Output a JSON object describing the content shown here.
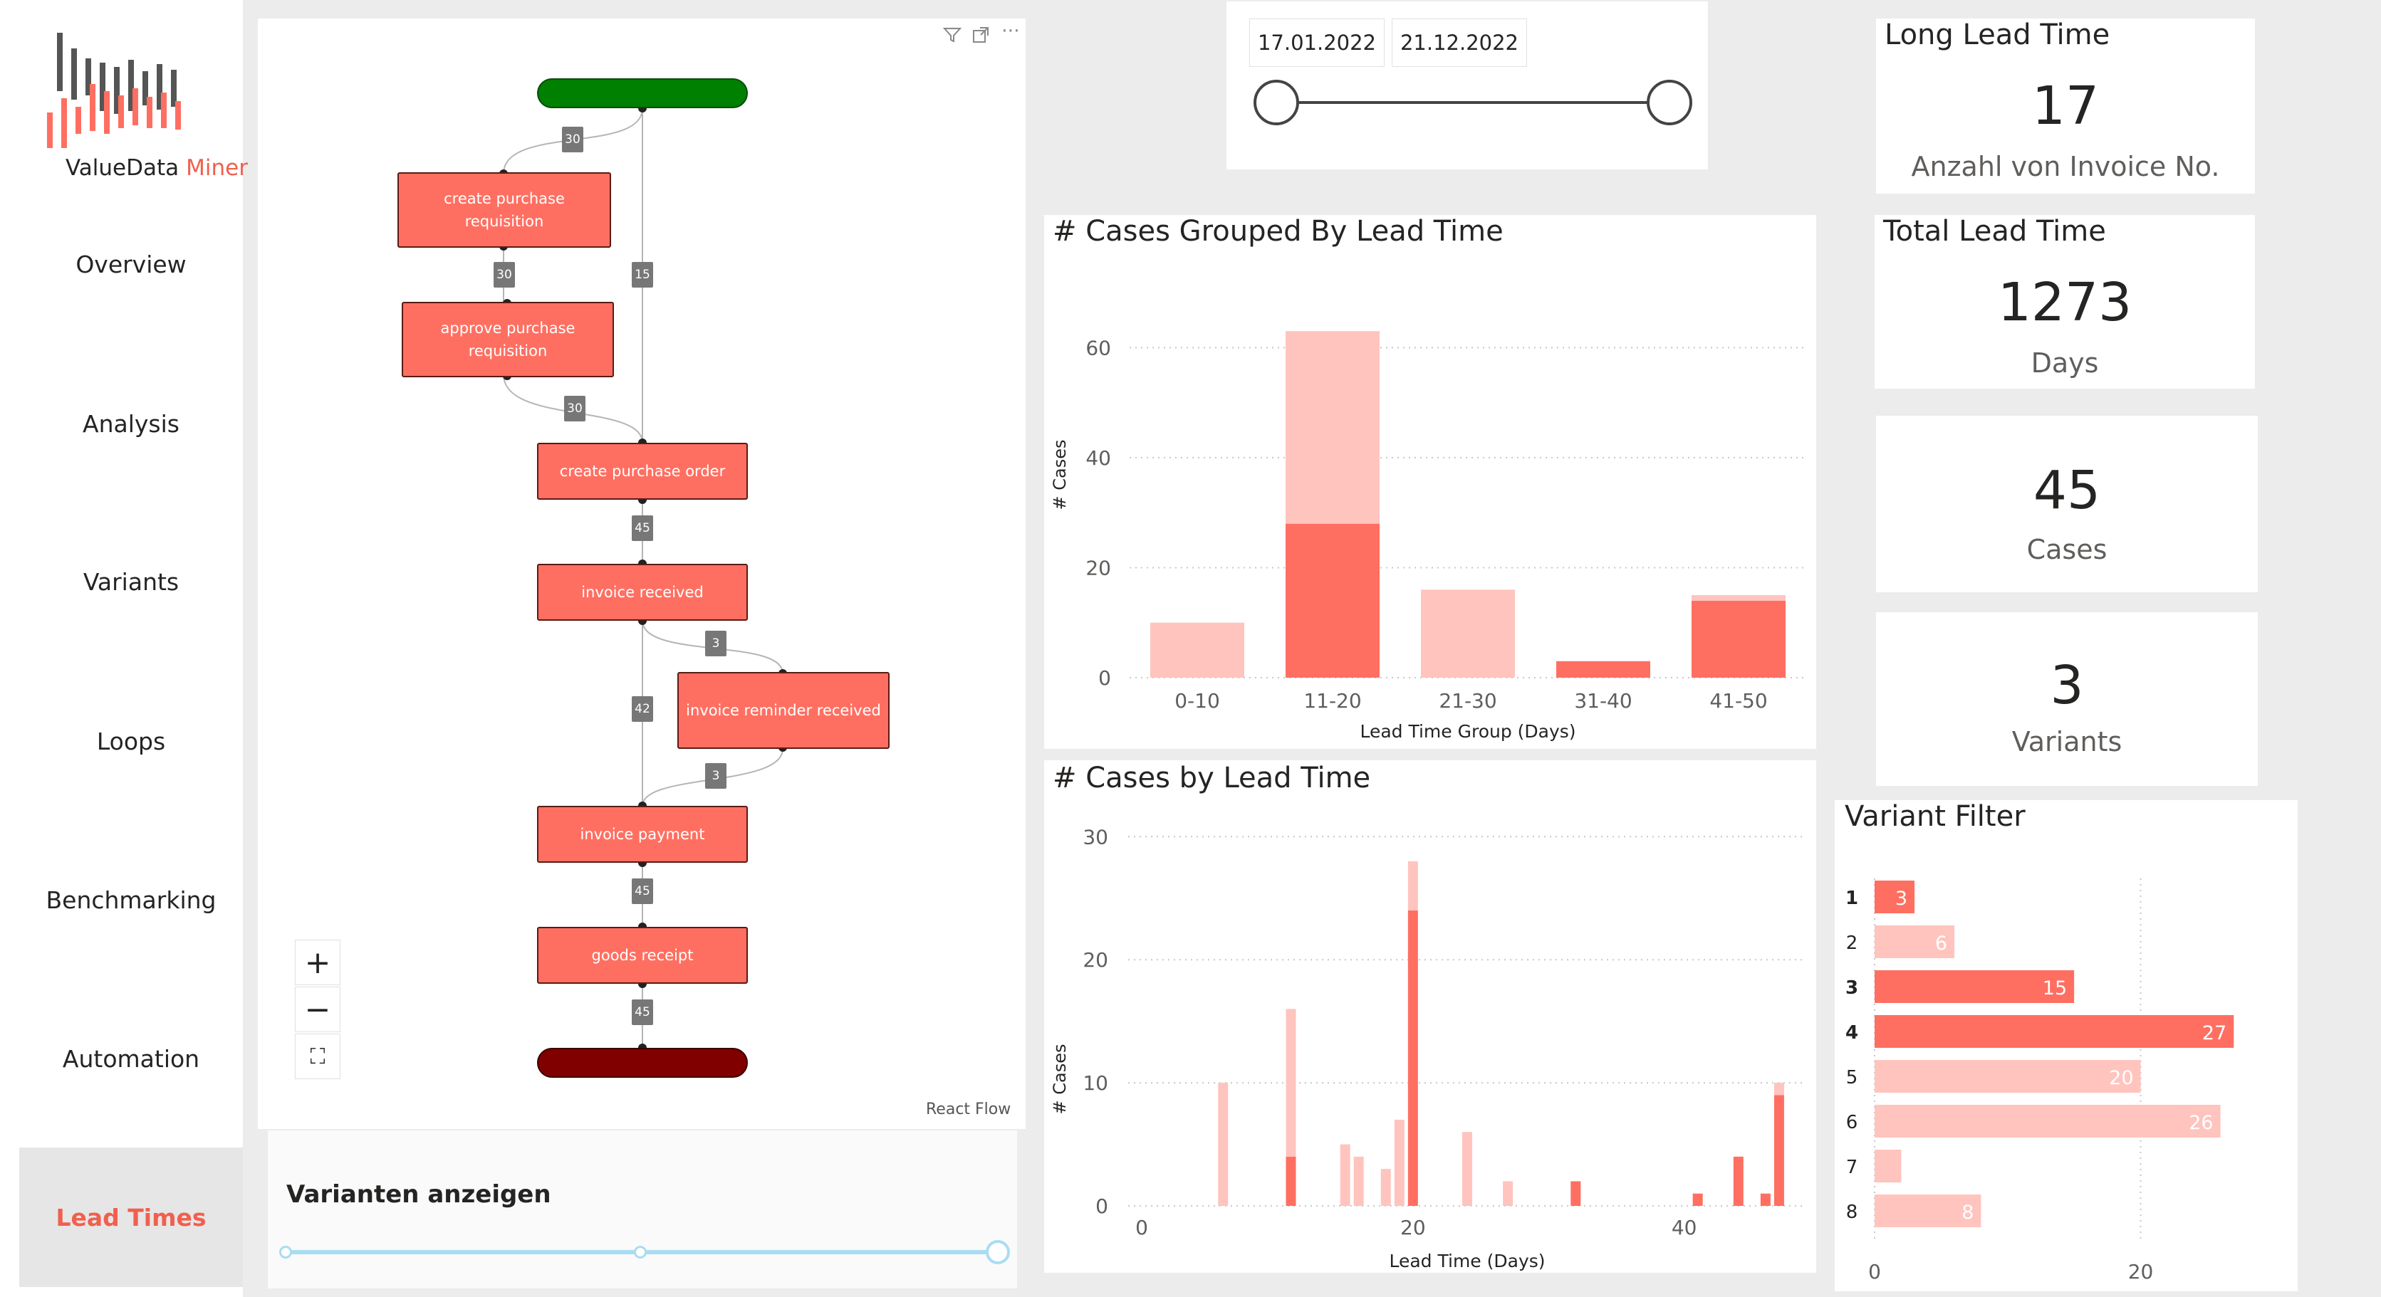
{
  "brand": {
    "name_part1": "ValueData",
    "name_part2": "Miner"
  },
  "nav": {
    "items": [
      {
        "label": "Overview"
      },
      {
        "label": "Analysis"
      },
      {
        "label": "Variants"
      },
      {
        "label": "Loops"
      },
      {
        "label": "Benchmarking"
      },
      {
        "label": "Automation"
      },
      {
        "label": "Lead Times"
      }
    ],
    "active": "Lead Times"
  },
  "process_flow": {
    "nodes": [
      {
        "label": "create purchase requisition"
      },
      {
        "label": "approve purchase requisition"
      },
      {
        "label": "create purchase order"
      },
      {
        "label": "invoice received"
      },
      {
        "label": "invoice reminder received"
      },
      {
        "label": "invoice payment"
      },
      {
        "label": "goods receipt"
      }
    ],
    "edges": [
      "30",
      "15",
      "30",
      "30",
      "45",
      "3",
      "42",
      "3",
      "45",
      "45"
    ],
    "attribution": "React Flow",
    "controls": {
      "zoom_in": "+",
      "zoom_out": "−",
      "fit": "⛶"
    }
  },
  "variant_slider": {
    "title": "Varianten anzeigen"
  },
  "date_range": {
    "start": "17.01.2022",
    "end": "21.12.2022"
  },
  "kpis": [
    {
      "title": "Long Lead Time",
      "value": "17",
      "label": "Anzahl von Invoice No."
    },
    {
      "title": "Total Lead Time",
      "value": "1273",
      "label": "Days"
    },
    {
      "title": "",
      "value": "45",
      "label": "Cases"
    },
    {
      "title": "",
      "value": "3",
      "label": "Variants"
    }
  ],
  "colors": {
    "dark": "#ff6f61",
    "light": "#ffc4be",
    "start": "#008000",
    "end": "#800000",
    "accent": "#f0604f"
  },
  "chart_data": [
    {
      "type": "bar",
      "title": "# Cases Grouped By Lead Time",
      "xlabel": "Lead Time Group (Days)",
      "ylabel": "# Cases",
      "categories": [
        "0-10",
        "11-20",
        "21-30",
        "31-40",
        "41-50"
      ],
      "series": [
        {
          "values": [
            0,
            28,
            0,
            3,
            14
          ]
        },
        {
          "values": [
            10,
            35,
            16,
            0,
            1
          ]
        }
      ],
      "stacked": true,
      "yticks": [
        0,
        20,
        40,
        60
      ],
      "ylim": [
        0,
        66
      ]
    },
    {
      "type": "bar",
      "title": "# Cases by Lead Time",
      "xlabel": "Lead Time (Days)",
      "ylabel": "# Cases",
      "xticks": [
        0,
        20,
        40
      ],
      "yticks": [
        0,
        10,
        20,
        30
      ],
      "xlim": [
        -1,
        49
      ],
      "ylim": [
        0,
        31
      ],
      "points": [
        {
          "x": 6,
          "dark": 0,
          "light": 10
        },
        {
          "x": 11,
          "dark": 4,
          "light": 12
        },
        {
          "x": 15,
          "dark": 0,
          "light": 5
        },
        {
          "x": 16,
          "dark": 0,
          "light": 4
        },
        {
          "x": 18,
          "dark": 0,
          "light": 3
        },
        {
          "x": 19,
          "dark": 0,
          "light": 7
        },
        {
          "x": 20,
          "dark": 24,
          "light": 4
        },
        {
          "x": 24,
          "dark": 0,
          "light": 6
        },
        {
          "x": 27,
          "dark": 0,
          "light": 2
        },
        {
          "x": 32,
          "dark": 2,
          "light": 0
        },
        {
          "x": 41,
          "dark": 1,
          "light": 0
        },
        {
          "x": 44,
          "dark": 4,
          "light": 0
        },
        {
          "x": 46,
          "dark": 1,
          "light": 0
        },
        {
          "x": 47,
          "dark": 9,
          "light": 1
        }
      ]
    },
    {
      "type": "bar",
      "orientation": "horizontal",
      "title": "Variant Filter",
      "categories": [
        "1",
        "2",
        "3",
        "4",
        "5",
        "6",
        "7",
        "8"
      ],
      "values": [
        3,
        6,
        15,
        27,
        20,
        26,
        2,
        8
      ],
      "highlighted": [
        true,
        false,
        true,
        true,
        false,
        false,
        false,
        false
      ],
      "xticks": [
        0,
        20
      ],
      "xlim": [
        0,
        30
      ]
    }
  ]
}
